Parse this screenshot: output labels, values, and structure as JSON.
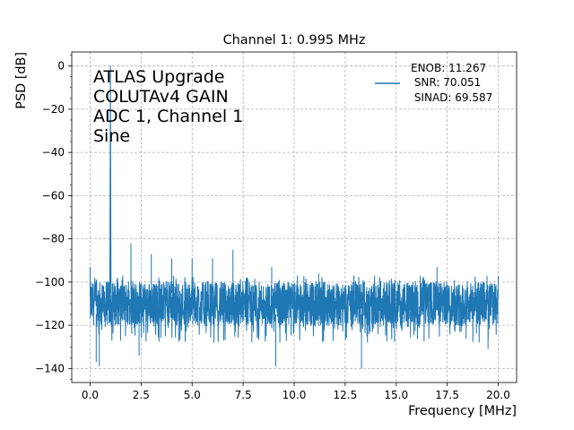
{
  "chart_data": {
    "type": "line",
    "title": "Channel 1: 0.995 MHz",
    "xlabel": "Frequency [MHz]",
    "ylabel": "PSD [dB]",
    "xlim": [
      -0.9,
      20.9
    ],
    "ylim": [
      -146.5,
      6.5
    ],
    "x_ticks": [
      0.0,
      2.5,
      5.0,
      7.5,
      10.0,
      12.5,
      15.0,
      17.5,
      20.0
    ],
    "x_tick_labels": [
      "0.0",
      "2.5",
      "5.0",
      "7.5",
      "10.0",
      "12.5",
      "15.0",
      "17.5",
      "20.0"
    ],
    "y_ticks": [
      0,
      -20,
      -40,
      -60,
      -80,
      -100,
      -120,
      -140
    ],
    "y_tick_labels": [
      "0",
      "−20",
      "−40",
      "−60",
      "−80",
      "−100",
      "−120",
      "−140"
    ],
    "grid": true,
    "grid_style": "dashed",
    "legend_position": "top-right",
    "annotation_lines": [
      "ATLAS Upgrade",
      "COLUTAv4 GAIN",
      "ADC 1, Channel 1",
      "Sine"
    ],
    "series": [
      {
        "name": "ENOB: 11.267\n SNR: 70.051\n SINAD: 69.587",
        "legend_lines": [
          "ENOB: 11.267",
          " SNR: 70.051",
          " SINAD: 69.587"
        ],
        "color": "#1f77b4",
        "noise_floor_db": -110,
        "noise_band_db": [
          -120,
          -100
        ],
        "fundamental": {
          "x": 0.995,
          "y": 0
        },
        "spurs": [
          {
            "x": 0.0,
            "y": -93
          },
          {
            "x": 1.0,
            "y": -82
          },
          {
            "x": 2.0,
            "y": -82
          },
          {
            "x": 3.0,
            "y": -87
          },
          {
            "x": 4.0,
            "y": -89
          },
          {
            "x": 5.0,
            "y": -89
          },
          {
            "x": 6.0,
            "y": -89
          },
          {
            "x": 7.0,
            "y": -85
          },
          {
            "x": 8.9,
            "y": -93
          },
          {
            "x": 11.2,
            "y": -96
          },
          {
            "x": 17.0,
            "y": -93
          }
        ],
        "dips": [
          {
            "x": 0.3,
            "y": -137
          },
          {
            "x": 0.45,
            "y": -139
          },
          {
            "x": 2.4,
            "y": -134
          },
          {
            "x": 9.1,
            "y": -139
          },
          {
            "x": 13.3,
            "y": -140
          },
          {
            "x": 19.5,
            "y": -131
          }
        ]
      }
    ]
  }
}
